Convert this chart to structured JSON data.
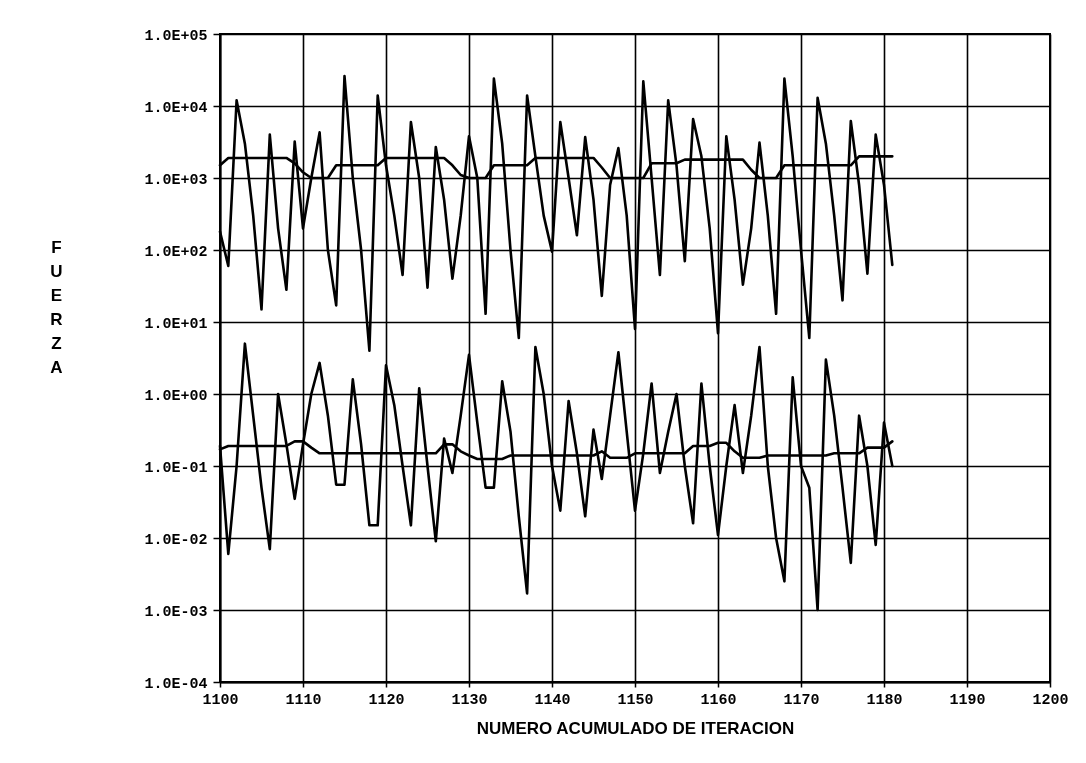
{
  "chart_data": {
    "type": "line",
    "xlabel": "NUMERO ACUMULADO DE ITERACION",
    "ylabel": "FUERZA",
    "log": true,
    "grid": true,
    "xlim": [
      1100,
      1200
    ],
    "xticks": [
      1100,
      1110,
      1120,
      1130,
      1140,
      1150,
      1160,
      1170,
      1180,
      1190,
      1200
    ],
    "ylim": [
      0.0001,
      100000
    ],
    "yticks": [
      {
        "value": 0.0001,
        "label": "1.0E-04"
      },
      {
        "value": 0.001,
        "label": "1.0E-03"
      },
      {
        "value": 0.01,
        "label": "1.0E-02"
      },
      {
        "value": 0.1,
        "label": "1.0E-01"
      },
      {
        "value": 1,
        "label": "1.0E+00"
      },
      {
        "value": 10,
        "label": "1.0E+01"
      },
      {
        "value": 100,
        "label": "1.0E+02"
      },
      {
        "value": 1000,
        "label": "1.0E+03"
      },
      {
        "value": 10000,
        "label": "1.0E+04"
      },
      {
        "value": 100000,
        "label": "1.0E+05"
      }
    ],
    "x": [
      1100,
      1101,
      1102,
      1103,
      1104,
      1105,
      1106,
      1107,
      1108,
      1109,
      1110,
      1111,
      1112,
      1113,
      1114,
      1115,
      1116,
      1117,
      1118,
      1119,
      1120,
      1121,
      1122,
      1123,
      1124,
      1125,
      1126,
      1127,
      1128,
      1129,
      1130,
      1131,
      1132,
      1133,
      1134,
      1135,
      1136,
      1137,
      1138,
      1139,
      1140,
      1141,
      1142,
      1143,
      1144,
      1145,
      1146,
      1147,
      1148,
      1149,
      1150,
      1151,
      1152,
      1153,
      1154,
      1155,
      1156,
      1157,
      1158,
      1159,
      1160,
      1161,
      1162,
      1163,
      1164,
      1165,
      1166,
      1167,
      1168,
      1169,
      1170,
      1171,
      1172,
      1173,
      1174,
      1175,
      1176,
      1177,
      1178,
      1179,
      1180,
      1181
    ],
    "series": [
      {
        "color": "#000000",
        "values": [
          180,
          60,
          12000,
          3000,
          300,
          15,
          4000,
          200,
          28,
          3200,
          200,
          1000,
          4300,
          100,
          17,
          26000,
          1000,
          100,
          4,
          14000,
          1500,
          300,
          45,
          6000,
          1000,
          30,
          2700,
          500,
          40,
          300,
          3800,
          1000,
          13,
          24000,
          3000,
          100,
          6,
          14000,
          2000,
          300,
          95,
          6000,
          1000,
          160,
          3700,
          500,
          23,
          800,
          2600,
          300,
          8,
          22000,
          1000,
          45,
          12000,
          1500,
          70,
          6600,
          2000,
          200,
          7,
          3800,
          500,
          33,
          200,
          3100,
          300,
          13,
          24000,
          2000,
          100,
          6,
          13000,
          3000,
          300,
          20,
          6200,
          800,
          47,
          4000,
          800,
          62
        ]
      },
      {
        "color": "#000000",
        "values": [
          1500,
          1900,
          1900,
          1900,
          1900,
          1900,
          1900,
          1900,
          1900,
          1600,
          1200,
          1000,
          1000,
          1000,
          1500,
          1500,
          1500,
          1500,
          1500,
          1500,
          1900,
          1900,
          1900,
          1900,
          1900,
          1900,
          1900,
          1900,
          1500,
          1100,
          1000,
          1000,
          1000,
          1500,
          1500,
          1500,
          1500,
          1500,
          1900,
          1900,
          1900,
          1900,
          1900,
          1900,
          1900,
          1900,
          1400,
          1000,
          1000,
          1000,
          1000,
          1000,
          1600,
          1600,
          1600,
          1600,
          1800,
          1800,
          1800,
          1800,
          1800,
          1800,
          1800,
          1800,
          1300,
          1000,
          1000,
          1000,
          1500,
          1500,
          1500,
          1500,
          1500,
          1500,
          1500,
          1500,
          1500,
          2000,
          2000,
          2000,
          2000,
          2000
        ]
      },
      {
        "color": "#000000",
        "values": [
          0.19,
          0.006,
          0.1,
          5,
          0.5,
          0.05,
          0.007,
          1,
          0.2,
          0.035,
          0.2,
          1,
          2.7,
          0.5,
          0.055,
          0.055,
          1.6,
          0.2,
          0.015,
          0.015,
          2.5,
          0.7,
          0.1,
          0.015,
          1.2,
          0.1,
          0.009,
          0.24,
          0.08,
          0.5,
          3.5,
          0.4,
          0.05,
          0.05,
          1.5,
          0.3,
          0.02,
          0.0017,
          4.5,
          1,
          0.1,
          0.024,
          0.8,
          0.15,
          0.02,
          0.32,
          0.066,
          0.5,
          3.8,
          0.3,
          0.024,
          0.15,
          1.4,
          0.08,
          0.3,
          1,
          0.1,
          0.016,
          1.4,
          0.1,
          0.011,
          0.1,
          0.7,
          0.08,
          0.5,
          4.5,
          0.1,
          0.01,
          0.0025,
          1.7,
          0.1,
          0.05,
          0.001,
          3,
          0.5,
          0.05,
          0.0045,
          0.5,
          0.1,
          0.008,
          0.4,
          0.1
        ]
      },
      {
        "color": "#000000",
        "values": [
          0.17,
          0.19,
          0.19,
          0.19,
          0.19,
          0.19,
          0.19,
          0.19,
          0.19,
          0.22,
          0.22,
          0.18,
          0.15,
          0.15,
          0.15,
          0.15,
          0.15,
          0.15,
          0.15,
          0.15,
          0.15,
          0.15,
          0.15,
          0.15,
          0.15,
          0.15,
          0.15,
          0.2,
          0.2,
          0.16,
          0.14,
          0.125,
          0.125,
          0.125,
          0.125,
          0.14,
          0.14,
          0.14,
          0.14,
          0.14,
          0.14,
          0.14,
          0.14,
          0.14,
          0.14,
          0.14,
          0.16,
          0.13,
          0.13,
          0.13,
          0.15,
          0.15,
          0.15,
          0.15,
          0.15,
          0.15,
          0.15,
          0.19,
          0.19,
          0.19,
          0.21,
          0.21,
          0.16,
          0.13,
          0.13,
          0.13,
          0.14,
          0.14,
          0.14,
          0.14,
          0.14,
          0.14,
          0.14,
          0.14,
          0.15,
          0.15,
          0.15,
          0.15,
          0.18,
          0.18,
          0.18,
          0.22
        ]
      }
    ]
  }
}
